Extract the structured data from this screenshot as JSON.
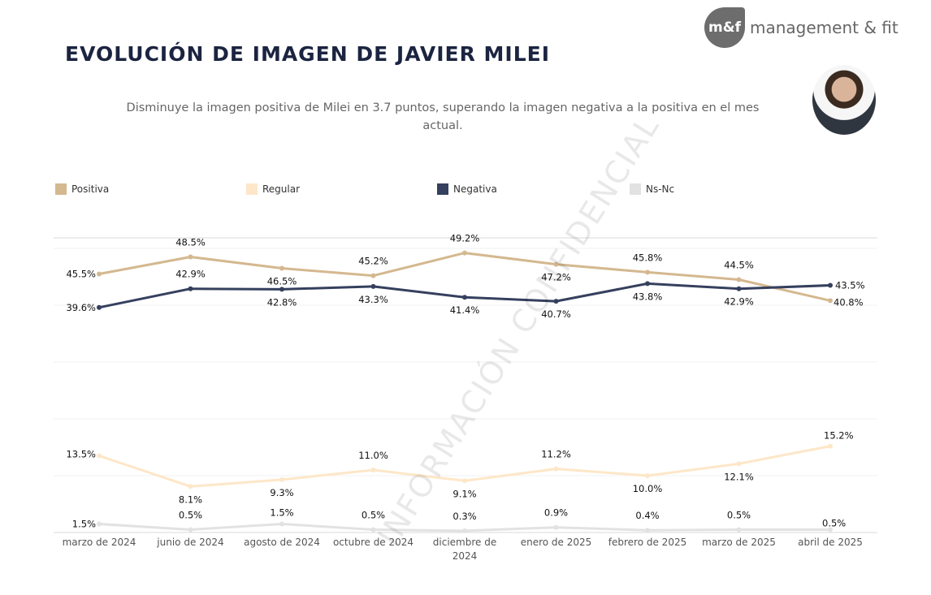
{
  "header": {
    "title": "EVOLUCIÓN DE IMAGEN DE JAVIER MILEI",
    "subtitle": "Disminuye la imagen positiva de Milei en 3.7 puntos, superando la imagen negativa a la positiva en el mes actual.",
    "logo_badge": "m&f",
    "logo_text": "management & fit",
    "watermark": "INFORMACIÓN CONFIDENCIAL"
  },
  "chart_data": {
    "type": "line",
    "title": "EVOLUCIÓN DE IMAGEN DE JAVIER MILEI",
    "xlabel": "",
    "ylabel": "",
    "ylim": [
      0,
      50
    ],
    "grid": true,
    "legend_position": "top",
    "categories": [
      "marzo de 2024",
      "junio de 2024",
      "agosto de 2024",
      "octubre de 2024",
      "diciembre de 2024",
      "enero de 2025",
      "febrero de 2025",
      "marzo de 2025",
      "abril de 2025"
    ],
    "series": [
      {
        "name": "Positiva",
        "color": "#d4b88f",
        "values": [
          45.5,
          48.5,
          46.5,
          45.2,
          49.2,
          47.2,
          45.8,
          44.5,
          40.8
        ]
      },
      {
        "name": "Regular",
        "color": "#fde7c8",
        "values": [
          13.5,
          8.1,
          9.3,
          11.0,
          9.1,
          11.2,
          10.0,
          12.1,
          15.2
        ]
      },
      {
        "name": "Negativa",
        "color": "#35405e",
        "values": [
          39.6,
          42.9,
          42.8,
          43.3,
          41.4,
          40.7,
          43.8,
          42.9,
          43.5
        ]
      },
      {
        "name": "Ns-Nc",
        "color": "#e2e2e2",
        "values": [
          1.5,
          0.5,
          1.5,
          0.5,
          0.3,
          0.9,
          0.4,
          0.5,
          0.5
        ]
      }
    ]
  }
}
